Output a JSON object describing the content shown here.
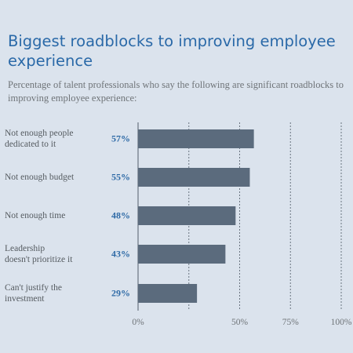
{
  "chart_data": {
    "type": "bar",
    "orientation": "horizontal",
    "title": "Biggest roadblocks to improving employee experience",
    "subtitle": "Percentage of talent professionals who say the following are significant roadblocks to improving employee experience:",
    "categories": [
      [
        "Not enough people",
        "dedicated to it"
      ],
      [
        "Not enough budget"
      ],
      [
        "Not enough time"
      ],
      [
        "Leadership",
        "doesn't prioritize it"
      ],
      [
        "Can't justify the",
        "investment"
      ]
    ],
    "values": [
      57,
      55,
      48,
      43,
      29
    ],
    "value_labels": [
      "57%",
      "55%",
      "48%",
      "43%",
      "29%"
    ],
    "xlim": [
      0,
      100
    ],
    "x_ticks": [
      0,
      25,
      50,
      75,
      100
    ],
    "x_tick_labels": [
      "0%",
      "",
      "50%",
      "75%",
      "100%"
    ],
    "grid": true,
    "colors": {
      "bar": "#5b6b7d",
      "grid": "#6a7480",
      "title": "#2a69a8",
      "value_label": "#2e6aa6",
      "background": "#dbe3ed"
    }
  }
}
